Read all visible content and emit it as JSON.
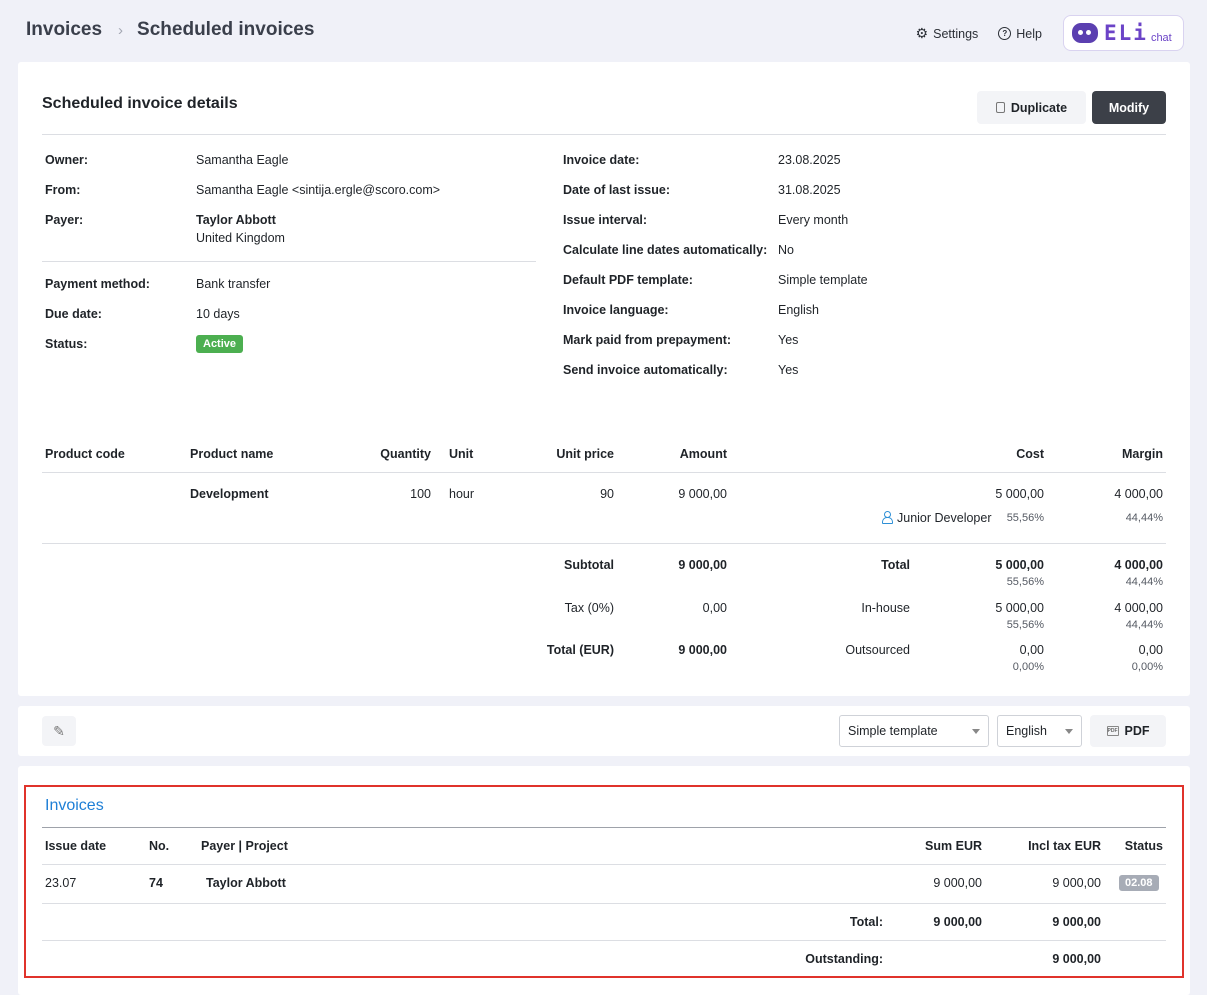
{
  "breadcrumb": {
    "parent": "Invoices",
    "current": "Scheduled invoices"
  },
  "top_links": {
    "settings": "Settings",
    "help": "Help"
  },
  "eli": {
    "word": "ELi",
    "chat": "chat"
  },
  "details": {
    "title": "Scheduled invoice details",
    "duplicate_label": "Duplicate",
    "modify_label": "Modify",
    "left": [
      {
        "label": "Owner:",
        "value": "Samantha Eagle"
      },
      {
        "label": "From:",
        "value": "Samantha Eagle <sintija.ergle@scoro.com>"
      },
      {
        "label": "Payer:",
        "value": "Taylor Abbott",
        "value2": "United Kingdom"
      },
      {
        "label": "Payment method:",
        "value": "Bank transfer"
      },
      {
        "label": "Due date:",
        "value": "10 days"
      },
      {
        "label": "Status:",
        "value": "Active"
      }
    ],
    "right": [
      {
        "label": "Invoice date:",
        "value": "23.08.2025"
      },
      {
        "label": "Date of last issue:",
        "value": "31.08.2025"
      },
      {
        "label": "Issue interval:",
        "value": "Every month"
      },
      {
        "label": "Calculate line dates automatically:",
        "value": "No"
      },
      {
        "label": "Default PDF template:",
        "value": "Simple template"
      },
      {
        "label": "Invoice language:",
        "value": "English"
      },
      {
        "label": "Mark paid from prepayment:",
        "value": "Yes"
      },
      {
        "label": "Send invoice automatically:",
        "value": "Yes"
      }
    ]
  },
  "products": {
    "headers": {
      "code": "Product code",
      "name": "Product name",
      "quantity": "Quantity",
      "unit": "Unit",
      "unit_price": "Unit price",
      "amount": "Amount",
      "cost": "Cost",
      "margin": "Margin"
    },
    "row": {
      "code": "",
      "name": "Development",
      "quantity": "100",
      "unit": "hour",
      "unit_price": "90",
      "amount": "9 000,00",
      "cost": "5 000,00",
      "margin": "4 000,00",
      "role": "Junior Developer",
      "cost_pct": "55,56%",
      "margin_pct": "44,44%"
    },
    "subtotal_label": "Subtotal",
    "subtotal": "9 000,00",
    "tax_label": "Tax (0%)",
    "tax": "0,00",
    "total_label": "Total (EUR)",
    "total": "9 000,00",
    "summary": [
      {
        "label": "Total",
        "cost": "5 000,00",
        "cost_pct": "55,56%",
        "margin": "4 000,00",
        "margin_pct": "44,44%"
      },
      {
        "label": "In-house",
        "cost": "5 000,00",
        "cost_pct": "55,56%",
        "margin": "4 000,00",
        "margin_pct": "44,44%"
      },
      {
        "label": "Outsourced",
        "cost": "0,00",
        "cost_pct": "0,00%",
        "margin": "0,00",
        "margin_pct": "0,00%"
      }
    ]
  },
  "toolbar": {
    "template": "Simple template",
    "language": "English",
    "pdf_label": "PDF"
  },
  "invoices": {
    "title": "Invoices",
    "headers": {
      "issue_date": "Issue date",
      "no": "No.",
      "payer": "Payer | Project",
      "sum": "Sum EUR",
      "incl_tax": "Incl tax EUR",
      "status": "Status"
    },
    "rows": [
      {
        "issue_date": "23.07",
        "no": "74",
        "payer": "Taylor Abbott",
        "sum": "9 000,00",
        "incl_tax": "9 000,00",
        "status": "02.08"
      }
    ],
    "total_label": "Total:",
    "total_sum": "9 000,00",
    "total_incl": "9 000,00",
    "outstanding_label": "Outstanding:",
    "outstanding": "9 000,00"
  }
}
